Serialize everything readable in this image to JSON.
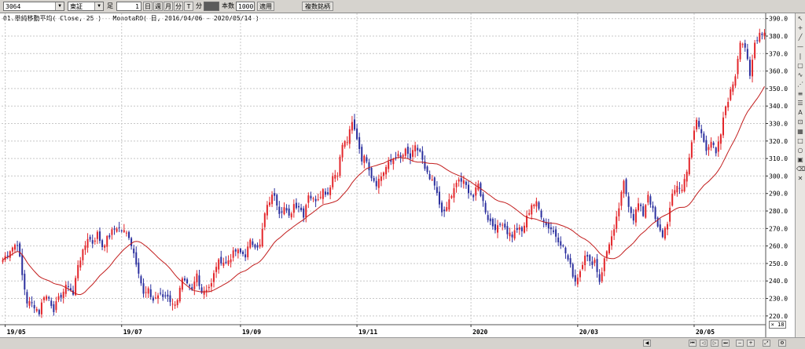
{
  "toolbar": {
    "symbol": "3064",
    "market": "東証",
    "period_label": "足",
    "period_count": "1",
    "period_buttons": [
      "日",
      "週",
      "月",
      "分",
      "T"
    ],
    "minute_label": "分",
    "bars_value": "1000",
    "bars_label": "本数",
    "apply_label": "適用",
    "related_label": "複数銘柄"
  },
  "legend": {
    "indicator": "01.単純移動平均( Close, 25 )",
    "series_info": "MonotaRO( 日, 2016/04/06 - 2020/05/14 )"
  },
  "zoom_level": "× 18",
  "colors": {
    "up": "#e3262b",
    "down": "#2b2f9e",
    "ma": "#c21d1d",
    "grid": "#c7c7c7"
  },
  "chart_data": {
    "type": "candlestick",
    "ylim": [
      215,
      393
    ],
    "y_ticks": [
      220,
      230,
      240,
      250,
      260,
      270,
      280,
      290,
      300,
      310,
      320,
      330,
      340,
      350,
      360,
      370,
      380,
      390
    ],
    "x_ticks": [
      "19/05",
      "19/07",
      "19/09",
      "19/11",
      "2020",
      "20/03",
      "20/05"
    ],
    "x_tick_positions": [
      1,
      49,
      98,
      146,
      193,
      237,
      285
    ],
    "anchors": [
      [
        0,
        252
      ],
      [
        3,
        258
      ],
      [
        6,
        262
      ],
      [
        8,
        243
      ],
      [
        10,
        228
      ],
      [
        13,
        226
      ],
      [
        15,
        222
      ],
      [
        17,
        232
      ],
      [
        19,
        230
      ],
      [
        21,
        224
      ],
      [
        24,
        232
      ],
      [
        27,
        238
      ],
      [
        29,
        232
      ],
      [
        31,
        250
      ],
      [
        33,
        256
      ],
      [
        35,
        265
      ],
      [
        37,
        262
      ],
      [
        39,
        267
      ],
      [
        41,
        260
      ],
      [
        43,
        264
      ],
      [
        45,
        268
      ],
      [
        47,
        271
      ],
      [
        50,
        268
      ],
      [
        52,
        266
      ],
      [
        54,
        256
      ],
      [
        56,
        246
      ],
      [
        58,
        232
      ],
      [
        60,
        234
      ],
      [
        62,
        229
      ],
      [
        64,
        232
      ],
      [
        66,
        231
      ],
      [
        68,
        232
      ],
      [
        70,
        226
      ],
      [
        72,
        230
      ],
      [
        74,
        240
      ],
      [
        76,
        237
      ],
      [
        78,
        234
      ],
      [
        80,
        244
      ],
      [
        82,
        234
      ],
      [
        84,
        236
      ],
      [
        86,
        238
      ],
      [
        88,
        249
      ],
      [
        90,
        252
      ],
      [
        92,
        250
      ],
      [
        94,
        254
      ],
      [
        96,
        257
      ],
      [
        98,
        256
      ],
      [
        100,
        255
      ],
      [
        102,
        262
      ],
      [
        104,
        261
      ],
      [
        106,
        260
      ],
      [
        108,
        278
      ],
      [
        110,
        286
      ],
      [
        112,
        290
      ],
      [
        114,
        280
      ],
      [
        116,
        282
      ],
      [
        118,
        276
      ],
      [
        120,
        284
      ],
      [
        122,
        283
      ],
      [
        124,
        278
      ],
      [
        126,
        290
      ],
      [
        128,
        286
      ],
      [
        130,
        288
      ],
      [
        132,
        292
      ],
      [
        134,
        290
      ],
      [
        136,
        300
      ],
      [
        138,
        302
      ],
      [
        140,
        318
      ],
      [
        142,
        320
      ],
      [
        144,
        330
      ],
      [
        146,
        322
      ],
      [
        148,
        310
      ],
      [
        150,
        310
      ],
      [
        152,
        300
      ],
      [
        154,
        296
      ],
      [
        156,
        300
      ],
      [
        158,
        305
      ],
      [
        160,
        308
      ],
      [
        162,
        312
      ],
      [
        164,
        310
      ],
      [
        166,
        314
      ],
      [
        168,
        310
      ],
      [
        170,
        316
      ],
      [
        172,
        314
      ],
      [
        174,
        303
      ],
      [
        176,
        298
      ],
      [
        178,
        294
      ],
      [
        180,
        284
      ],
      [
        182,
        278
      ],
      [
        184,
        286
      ],
      [
        186,
        292
      ],
      [
        188,
        298
      ],
      [
        190,
        296
      ],
      [
        192,
        292
      ],
      [
        194,
        288
      ],
      [
        196,
        295
      ],
      [
        198,
        285
      ],
      [
        200,
        276
      ],
      [
        202,
        272
      ],
      [
        204,
        270
      ],
      [
        206,
        274
      ],
      [
        208,
        268
      ],
      [
        210,
        266
      ],
      [
        212,
        270
      ],
      [
        214,
        268
      ],
      [
        216,
        276
      ],
      [
        218,
        284
      ],
      [
        220,
        284
      ],
      [
        222,
        278
      ],
      [
        224,
        272
      ],
      [
        226,
        270
      ],
      [
        228,
        266
      ],
      [
        230,
        262
      ],
      [
        232,
        256
      ],
      [
        234,
        248
      ],
      [
        236,
        240
      ],
      [
        238,
        246
      ],
      [
        240,
        256
      ],
      [
        242,
        250
      ],
      [
        244,
        252
      ],
      [
        246,
        240
      ],
      [
        248,
        252
      ],
      [
        250,
        262
      ],
      [
        252,
        268
      ],
      [
        254,
        282
      ],
      [
        256,
        296
      ],
      [
        258,
        284
      ],
      [
        260,
        276
      ],
      [
        262,
        284
      ],
      [
        264,
        278
      ],
      [
        266,
        290
      ],
      [
        268,
        280
      ],
      [
        270,
        270
      ],
      [
        272,
        266
      ],
      [
        274,
        274
      ],
      [
        276,
        288
      ],
      [
        278,
        295
      ],
      [
        280,
        292
      ],
      [
        282,
        304
      ],
      [
        284,
        318
      ],
      [
        286,
        332
      ],
      [
        288,
        324
      ],
      [
        290,
        316
      ],
      [
        292,
        320
      ],
      [
        294,
        312
      ],
      [
        296,
        324
      ],
      [
        298,
        340
      ],
      [
        300,
        348
      ],
      [
        302,
        358
      ],
      [
        304,
        378
      ],
      [
        306,
        374
      ],
      [
        308,
        356
      ],
      [
        310,
        376
      ],
      [
        312,
        382
      ]
    ],
    "ma_period": 25
  }
}
